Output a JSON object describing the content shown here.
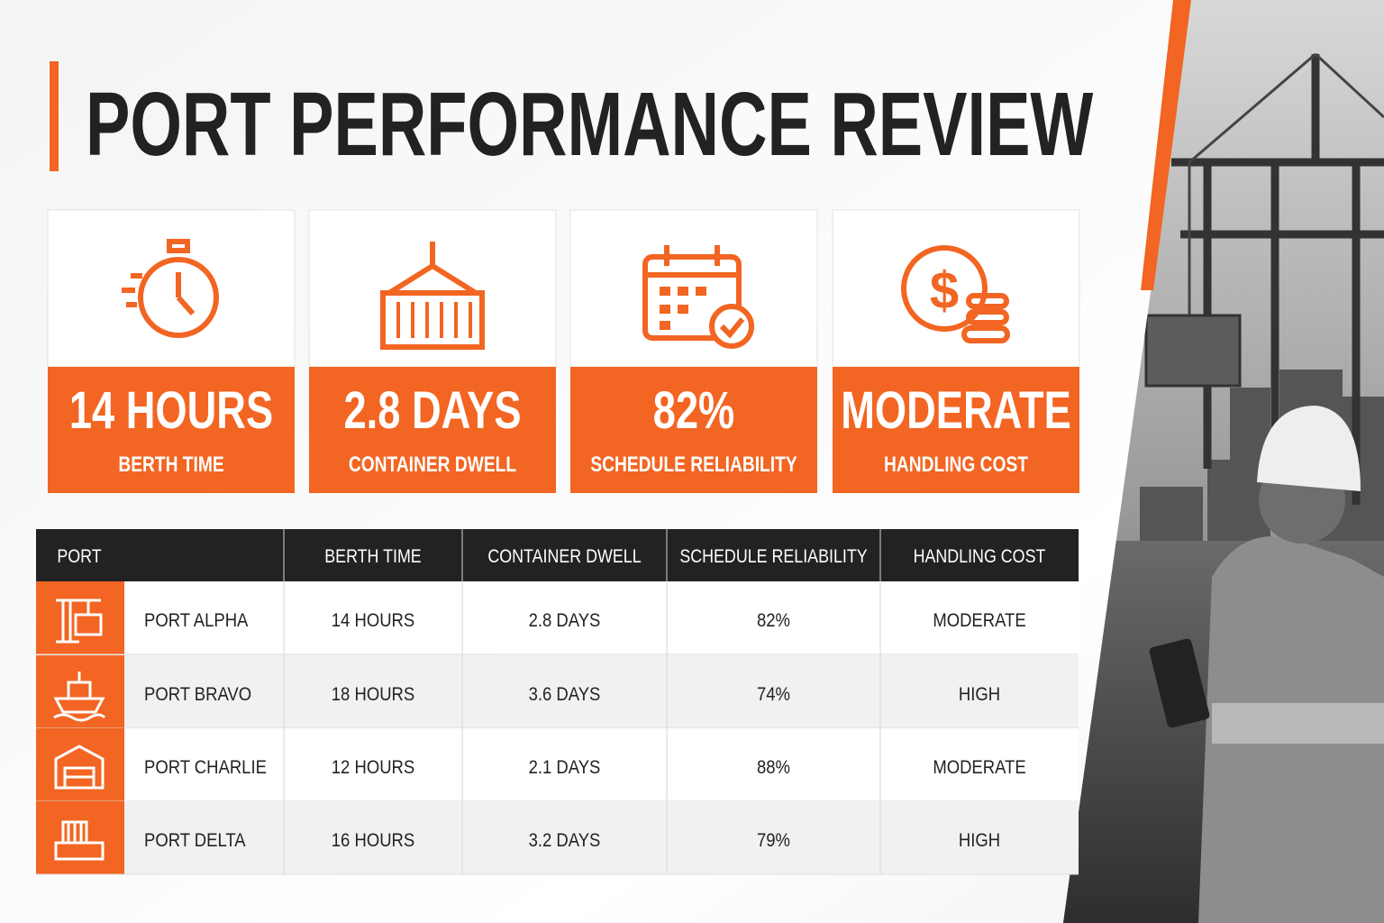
{
  "header": {
    "title": "PORT PERFORMANCE REVIEW"
  },
  "cards": [
    {
      "value": "14 HOURS",
      "label": "BERTH TIME"
    },
    {
      "value": "2.8 DAYS",
      "label": "CONTAINER DWELL"
    },
    {
      "value": "82%",
      "label": "SCHEDULE RELIABILITY"
    },
    {
      "value": "MODERATE",
      "label": "HANDLING COST"
    }
  ],
  "table": {
    "columns": [
      "PORT",
      "BERTH TIME",
      "CONTAINER DWELL",
      "SCHEDULE RELIABILITY",
      "HANDLING COST"
    ],
    "rows": [
      [
        "PORT ALPHA",
        "14 HOURS",
        "2.8 DAYS",
        "82%",
        "MODERATE"
      ],
      [
        "PORT BRAVO",
        "18 HOURS",
        "3.6 DAYS",
        "74%",
        "HIGH"
      ],
      [
        "PORT CHARLIE",
        "12 HOURS",
        "2.1 DAYS",
        "88%",
        "MODERATE"
      ],
      [
        "PORT DELTA",
        "16 HOURS",
        "3.2 DAYS",
        "79%",
        "HIGH"
      ]
    ]
  }
}
